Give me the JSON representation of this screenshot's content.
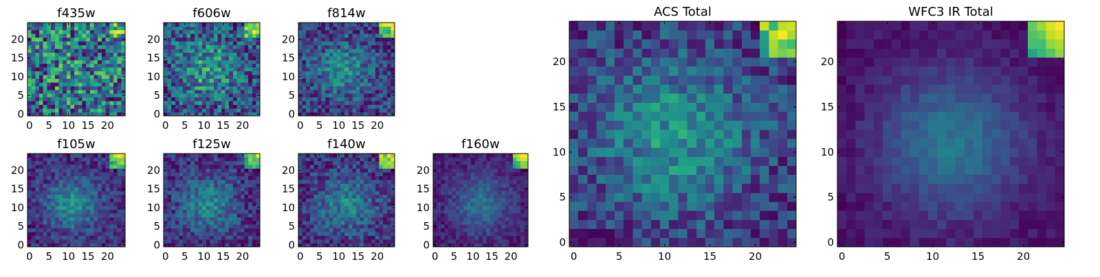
{
  "figure": {
    "background": "#ffffff",
    "colormap": "viridis"
  },
  "chart_data": [
    {
      "id": "f435w",
      "type": "heatmap",
      "title": "f435w",
      "xlabel": "",
      "ylabel": "",
      "grid_size": [
        25,
        25
      ],
      "xlim": [
        -0.5,
        24.5
      ],
      "ylim": [
        -0.5,
        24.5
      ],
      "x_ticks": [
        0,
        5,
        10,
        15,
        20
      ],
      "y_ticks": [
        0,
        5,
        10,
        15,
        20
      ],
      "origin": "lower",
      "noise": 0.42,
      "seed": 11,
      "blob": {
        "center": [
          12,
          12
        ],
        "sigma": 7.0,
        "amplitude": 0.08
      },
      "base": 0.62,
      "corner_hot": 0.25,
      "tile_px": 1,
      "min_block": 1
    },
    {
      "id": "f606w",
      "type": "heatmap",
      "title": "f606w",
      "xlabel": "",
      "ylabel": "",
      "grid_size": [
        25,
        25
      ],
      "xlim": [
        -0.5,
        24.5
      ],
      "ylim": [
        -0.5,
        24.5
      ],
      "x_ticks": [
        0,
        5,
        10,
        15,
        20
      ],
      "y_ticks": [
        0,
        5,
        10,
        15,
        20
      ],
      "origin": "lower",
      "noise": 0.32,
      "seed": 23,
      "blob": {
        "center": [
          11,
          12
        ],
        "sigma": 5.5,
        "amplitude": 0.32
      },
      "base": 0.42,
      "corner_hot": 0.55,
      "tile_px": 1,
      "min_block": 1
    },
    {
      "id": "f814w",
      "type": "heatmap",
      "title": "f814w",
      "xlabel": "",
      "ylabel": "",
      "grid_size": [
        25,
        25
      ],
      "xlim": [
        -0.5,
        24.5
      ],
      "ylim": [
        -0.5,
        24.5
      ],
      "x_ticks": [
        0,
        5,
        10,
        15,
        20
      ],
      "y_ticks": [
        0,
        5,
        10,
        15,
        20
      ],
      "origin": "lower",
      "noise": 0.28,
      "seed": 37,
      "blob": {
        "center": [
          11,
          12
        ],
        "sigma": 5.0,
        "amplitude": 0.42
      },
      "base": 0.38,
      "corner_hot": 0.7,
      "tile_px": 1,
      "min_block": 1
    },
    {
      "id": "f105w",
      "type": "heatmap",
      "title": "f105w",
      "xlabel": "",
      "ylabel": "",
      "grid_size": [
        25,
        25
      ],
      "xlim": [
        -0.5,
        24.5
      ],
      "ylim": [
        -0.5,
        24.5
      ],
      "x_ticks": [
        0,
        5,
        10,
        15,
        20
      ],
      "y_ticks": [
        0,
        5,
        10,
        15,
        20
      ],
      "origin": "lower",
      "noise": 0.2,
      "seed": 41,
      "blob": {
        "center": [
          11,
          11
        ],
        "sigma": 4.8,
        "amplitude": 0.5
      },
      "base": 0.28,
      "corner_hot": 0.8,
      "tile_px": 1,
      "min_block": 1
    },
    {
      "id": "f125w",
      "type": "heatmap",
      "title": "f125w",
      "xlabel": "",
      "ylabel": "",
      "grid_size": [
        25,
        25
      ],
      "xlim": [
        -0.5,
        24.5
      ],
      "ylim": [
        -0.5,
        24.5
      ],
      "x_ticks": [
        0,
        5,
        10,
        15,
        20
      ],
      "y_ticks": [
        0,
        5,
        10,
        15,
        20
      ],
      "origin": "lower",
      "noise": 0.22,
      "seed": 53,
      "blob": {
        "center": [
          11,
          11
        ],
        "sigma": 5.2,
        "amplitude": 0.44
      },
      "base": 0.34,
      "corner_hot": 0.75,
      "tile_px": 1,
      "min_block": 1
    },
    {
      "id": "f140w",
      "type": "heatmap",
      "title": "f140w",
      "xlabel": "",
      "ylabel": "",
      "grid_size": [
        25,
        25
      ],
      "xlim": [
        -0.5,
        24.5
      ],
      "ylim": [
        -0.5,
        24.5
      ],
      "x_ticks": [
        0,
        5,
        10,
        15,
        20
      ],
      "y_ticks": [
        0,
        5,
        10,
        15,
        20
      ],
      "origin": "lower",
      "noise": 0.22,
      "seed": 67,
      "blob": {
        "center": [
          12,
          11
        ],
        "sigma": 5.0,
        "amplitude": 0.4
      },
      "base": 0.3,
      "corner_hot": 0.8,
      "tile_px": 1,
      "min_block": 1
    },
    {
      "id": "f160w",
      "type": "heatmap",
      "title": "f160w",
      "xlabel": "",
      "ylabel": "",
      "grid_size": [
        25,
        25
      ],
      "xlim": [
        -0.5,
        24.5
      ],
      "ylim": [
        -0.5,
        24.5
      ],
      "x_ticks": [
        0,
        5,
        10,
        15,
        20
      ],
      "y_ticks": [
        0,
        5,
        10,
        15,
        20
      ],
      "origin": "lower",
      "noise": 0.12,
      "seed": 79,
      "blob": {
        "center": [
          12,
          11
        ],
        "sigma": 5.5,
        "amplitude": 0.38
      },
      "base": 0.3,
      "corner_hot": 0.85,
      "tile_px": 1,
      "min_block": 1
    },
    {
      "id": "acs-total",
      "type": "heatmap",
      "title": "ACS Total",
      "xlabel": "",
      "ylabel": "",
      "grid_size": [
        25,
        25
      ],
      "xlim": [
        -0.5,
        24.5
      ],
      "ylim": [
        -0.5,
        24.5
      ],
      "x_ticks": [
        0,
        5,
        10,
        15,
        20
      ],
      "y_ticks": [
        0,
        5,
        10,
        15,
        20
      ],
      "origin": "lower",
      "noise": 0.2,
      "seed": 97,
      "blob": {
        "center": [
          11,
          12
        ],
        "sigma": 6.0,
        "amplitude": 0.38
      },
      "base": 0.5,
      "corner_hot": 0.6,
      "tile_px": 1,
      "min_block": 1
    },
    {
      "id": "wfc3-ir-total",
      "type": "heatmap",
      "title": "WFC3 IR Total",
      "xlabel": "",
      "ylabel": "",
      "grid_size": [
        25,
        25
      ],
      "xlim": [
        -0.5,
        24.5
      ],
      "ylim": [
        -0.5,
        24.5
      ],
      "x_ticks": [
        0,
        5,
        10,
        15,
        20
      ],
      "y_ticks": [
        0,
        5,
        10,
        15,
        20
      ],
      "origin": "lower",
      "noise": 0.08,
      "seed": 113,
      "blob": {
        "center": [
          12,
          11
        ],
        "sigma": 5.5,
        "amplitude": 0.5
      },
      "base": 0.22,
      "corner_hot": 0.95,
      "tile_px": 1,
      "min_block": 1
    }
  ]
}
